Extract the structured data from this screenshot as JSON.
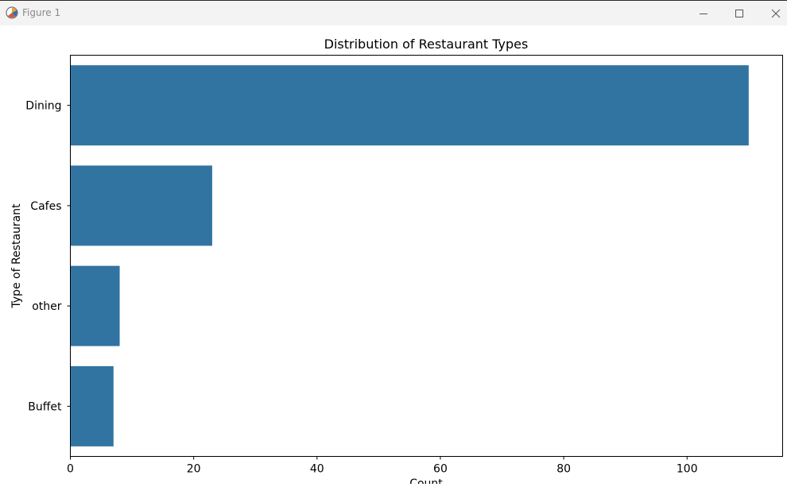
{
  "window": {
    "title": "Figure 1",
    "icon": "matplotlib-figure-icon",
    "controls": [
      "minimize-icon",
      "maximize-icon",
      "close-icon"
    ]
  },
  "chart_data": {
    "type": "bar",
    "orientation": "horizontal",
    "title": "Distribution of Restaurant Types",
    "xlabel": "Count",
    "ylabel": "Type of Restaurant",
    "categories": [
      "Dining",
      "Cafes",
      "other",
      "Buffet"
    ],
    "values": [
      110,
      23,
      8,
      7
    ],
    "xlim": [
      0,
      115.5
    ],
    "xticks": [
      0,
      20,
      40,
      60,
      80,
      100
    ],
    "grid": false,
    "bar_color": "#3274a1"
  }
}
